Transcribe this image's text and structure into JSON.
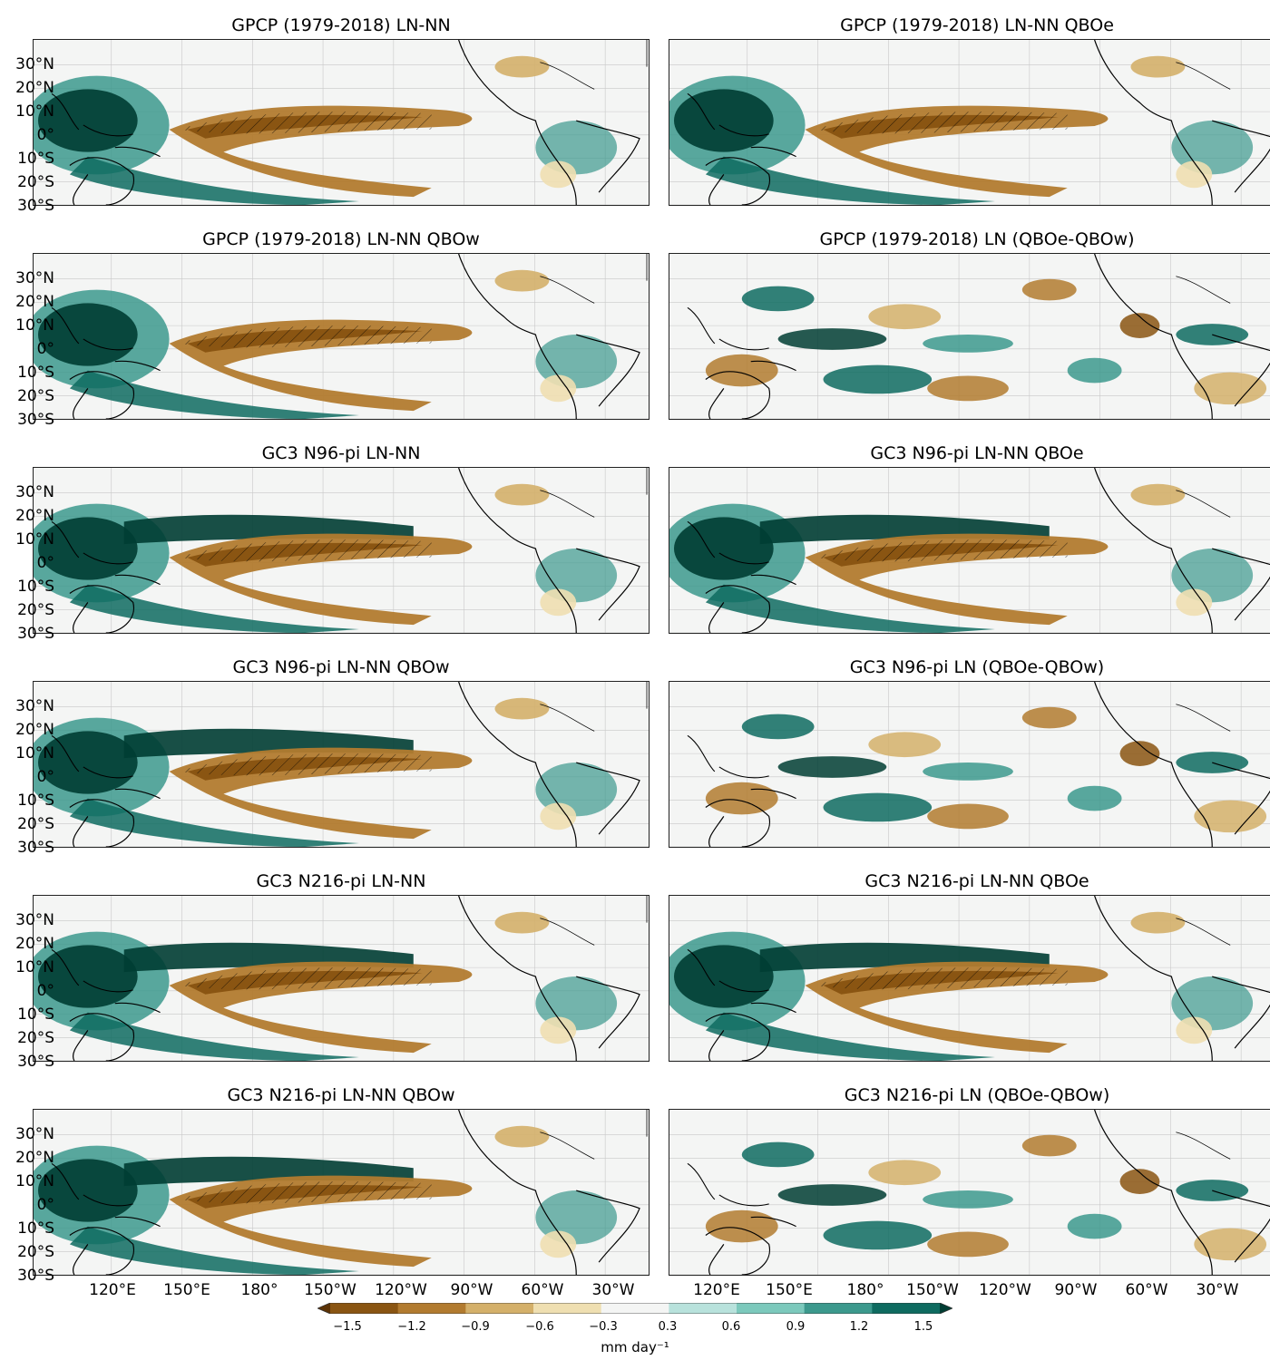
{
  "panels": [
    {
      "title": "GPCP (1979-2018) LN-NN"
    },
    {
      "title": "GPCP (1979-2018) LN-NN QBOe"
    },
    {
      "title": "GPCP (1979-2018) LN-NN QBOw"
    },
    {
      "title": "GPCP (1979-2018) LN (QBOe-QBOw)"
    },
    {
      "title": "GC3 N96-pi LN-NN"
    },
    {
      "title": "GC3 N96-pi LN-NN QBOe"
    },
    {
      "title": "GC3 N96-pi LN-NN QBOw"
    },
    {
      "title": "GC3 N96-pi LN (QBOe-QBOw)"
    },
    {
      "title": "GC3 N216-pi LN-NN"
    },
    {
      "title": "GC3 N216-pi LN-NN QBOe"
    },
    {
      "title": "GC3 N216-pi LN-NN QBOw"
    },
    {
      "title": "GC3 N216-pi LN (QBOe-QBOw)"
    }
  ],
  "lat_labels": [
    "30°N",
    "20°N",
    "10°N",
    "0°",
    "10°S",
    "20°S",
    "30°S"
  ],
  "lon_labels": [
    "120°E",
    "150°E",
    "180°",
    "150°W",
    "120°W",
    "90°W",
    "60°W",
    "30°W"
  ],
  "colorbar": {
    "ticks": [
      "−1.5",
      "−1.2",
      "−0.9",
      "−0.6",
      "−0.3",
      "0.3",
      "0.6",
      "0.9",
      "1.2",
      "1.5"
    ],
    "label": "mm day⁻¹",
    "colors": [
      "#5c3306",
      "#8a5512",
      "#b27b2f",
      "#d4b06a",
      "#efdfb1",
      "#f4f5f4",
      "#b8e2dc",
      "#7cc9bc",
      "#3c998d",
      "#0e6b60",
      "#003d33"
    ]
  }
}
